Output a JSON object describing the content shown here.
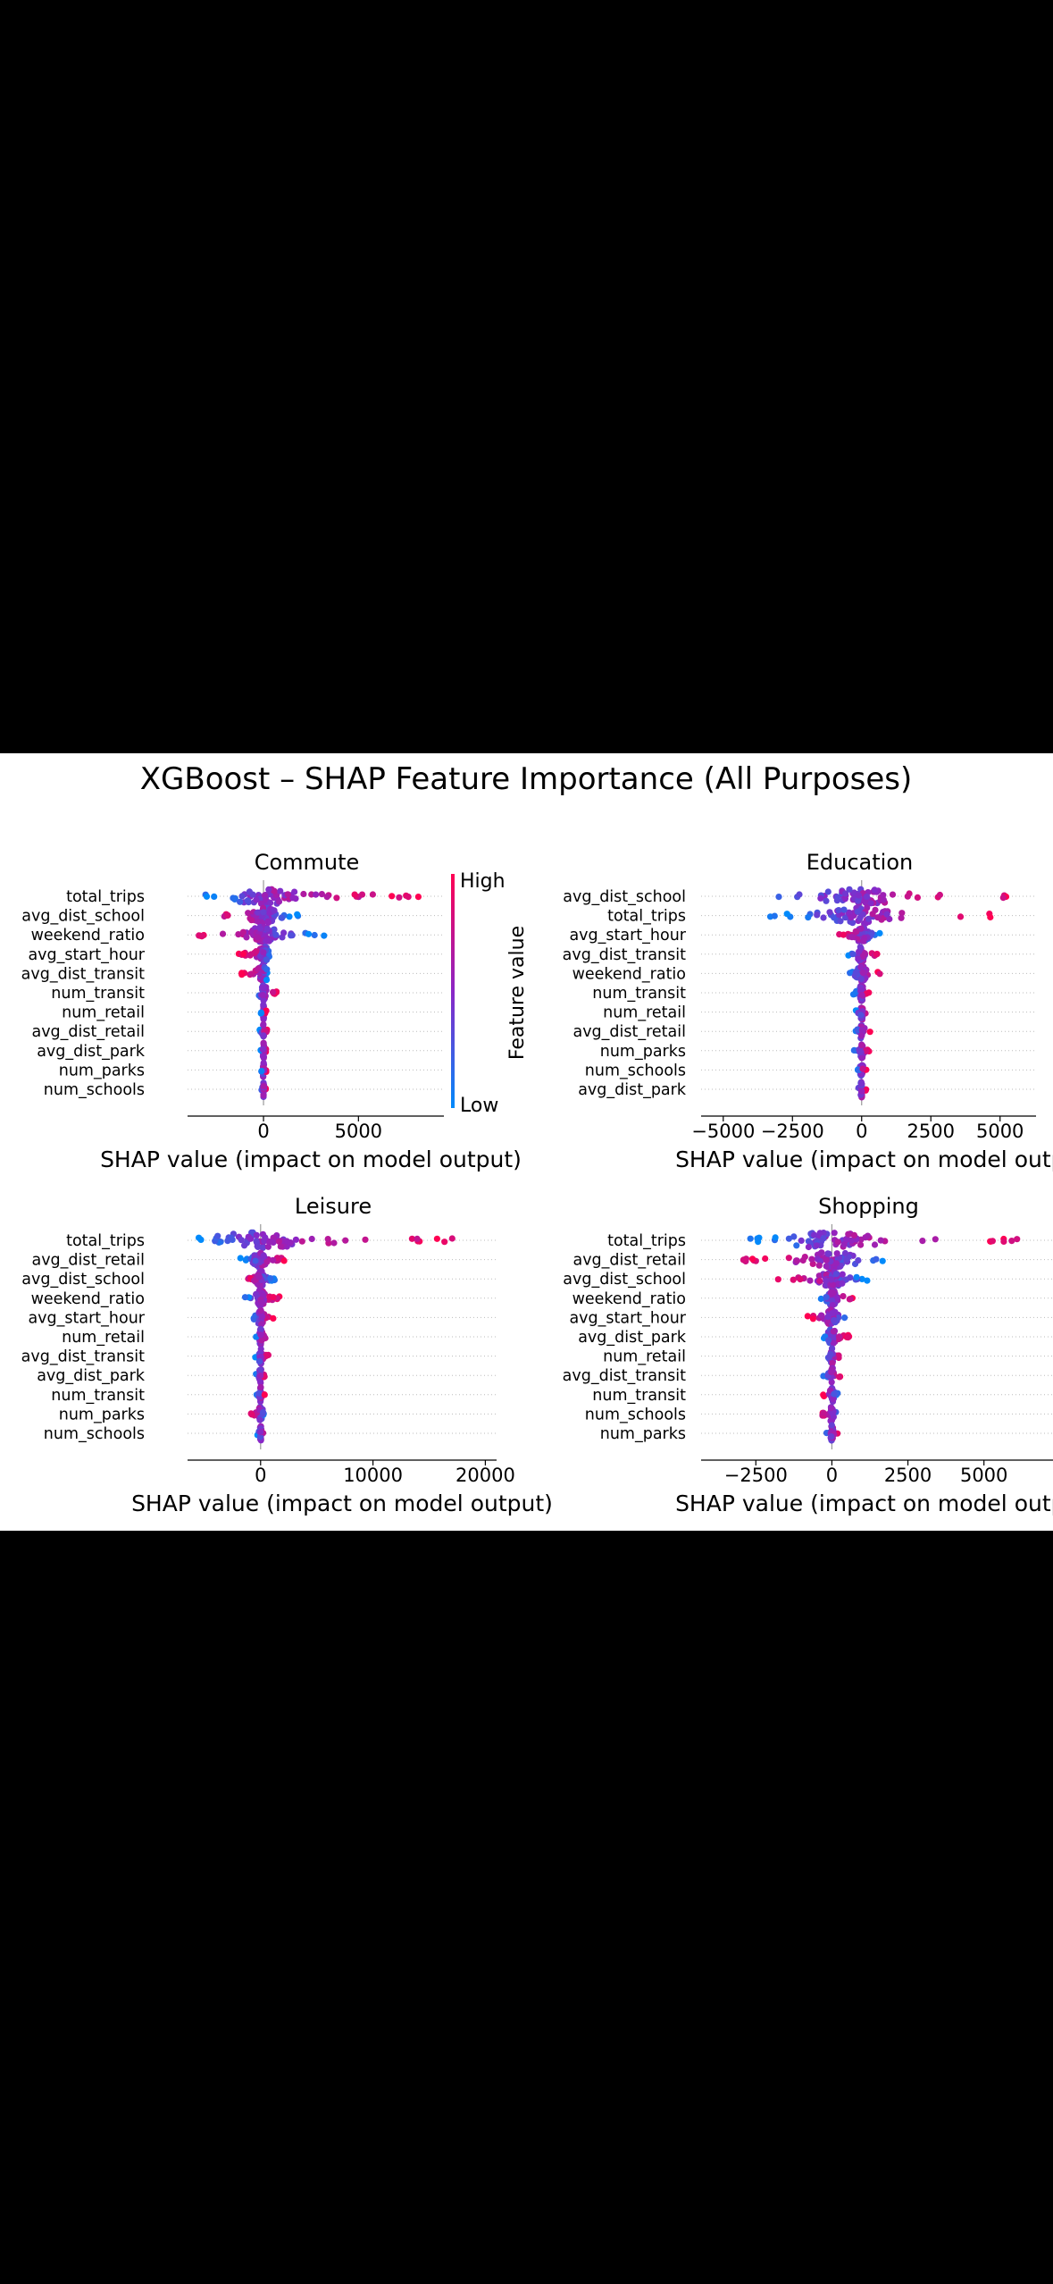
{
  "figure": {
    "title": "XGBoost – SHAP Feature Importance (All Purposes)"
  },
  "colorbar": {
    "high_label": "High",
    "low_label": "Low",
    "axis_label": "Feature value",
    "colors": {
      "low": "#008afb",
      "mid": "#8b26c6",
      "high": "#ff0052"
    }
  },
  "chart_data": [
    {
      "type": "scatter",
      "title": "Commute",
      "xlabel": "SHAP value (impact on model output)",
      "xlim": [
        -4000,
        9500
      ],
      "xticks": [
        0,
        5000
      ],
      "xtick_labels": [
        "0",
        "5000"
      ],
      "features": [
        "total_trips",
        "avg_dist_school",
        "weekend_ratio",
        "avg_start_hour",
        "avg_dist_transit",
        "num_transit",
        "num_retail",
        "avg_dist_retail",
        "avg_dist_park",
        "num_parks",
        "num_schools"
      ],
      "spread": [
        [
          -3300,
          8600
        ],
        [
          -2900,
          2000
        ],
        [
          -3500,
          3200
        ],
        [
          -1300,
          300
        ],
        [
          -1300,
          200
        ],
        [
          -300,
          700
        ],
        [
          -150,
          150
        ],
        [
          -200,
          200
        ],
        [
          -150,
          150
        ],
        [
          -150,
          150
        ],
        [
          -120,
          120
        ]
      ]
    },
    {
      "type": "scatter",
      "title": "Education",
      "xlabel": "SHAP value (impact on model output)",
      "xlim": [
        -5800,
        6300
      ],
      "xticks": [
        -5000,
        -2500,
        0,
        2500,
        5000
      ],
      "xtick_labels": [
        "−5000",
        "−2500",
        "0",
        "2500",
        "5000"
      ],
      "features": [
        "avg_dist_school",
        "total_trips",
        "avg_start_hour",
        "avg_dist_transit",
        "weekend_ratio",
        "num_transit",
        "num_retail",
        "avg_dist_retail",
        "num_parks",
        "num_schools",
        "avg_dist_park"
      ],
      "spread": [
        [
          -4700,
          6000
        ],
        [
          -3300,
          5000
        ],
        [
          -1000,
          800
        ],
        [
          -500,
          600
        ],
        [
          -500,
          700
        ],
        [
          -300,
          300
        ],
        [
          -250,
          250
        ],
        [
          -300,
          400
        ],
        [
          -300,
          300
        ],
        [
          -200,
          200
        ],
        [
          -200,
          200
        ]
      ]
    },
    {
      "type": "scatter",
      "title": "Leisure",
      "xlabel": "SHAP value (impact on model output)",
      "xlim": [
        -6500,
        21000
      ],
      "xticks": [
        0,
        10000,
        20000
      ],
      "xtick_labels": [
        "0",
        "10000",
        "20000"
      ],
      "features": [
        "total_trips",
        "avg_dist_retail",
        "avg_dist_school",
        "weekend_ratio",
        "avg_start_hour",
        "num_retail",
        "avg_dist_transit",
        "avg_dist_park",
        "num_transit",
        "num_parks",
        "num_schools"
      ],
      "spread": [
        [
          -5500,
          19000
        ],
        [
          -1800,
          2500
        ],
        [
          -1500,
          1300
        ],
        [
          -1500,
          1800
        ],
        [
          -1000,
          1200
        ],
        [
          -500,
          600
        ],
        [
          -500,
          700
        ],
        [
          -500,
          500
        ],
        [
          -400,
          400
        ],
        [
          -1000,
          400
        ],
        [
          -300,
          300
        ]
      ]
    },
    {
      "type": "scatter",
      "title": "Shopping",
      "xlabel": "SHAP value (impact on model output)",
      "xlim": [
        -4300,
        7300
      ],
      "xticks": [
        -2500,
        0,
        2500,
        5000
      ],
      "xtick_labels": [
        "−2500",
        "0",
        "2500",
        "5000"
      ],
      "features": [
        "total_trips",
        "avg_dist_retail",
        "avg_dist_school",
        "weekend_ratio",
        "avg_start_hour",
        "avg_dist_park",
        "num_retail",
        "avg_dist_transit",
        "num_transit",
        "num_schools",
        "num_parks"
      ],
      "spread": [
        [
          -2700,
          6800
        ],
        [
          -3300,
          1700
        ],
        [
          -1800,
          1200
        ],
        [
          -500,
          800
        ],
        [
          -800,
          600
        ],
        [
          -300,
          600
        ],
        [
          -300,
          300
        ],
        [
          -300,
          300
        ],
        [
          -300,
          200
        ],
        [
          -400,
          200
        ],
        [
          -200,
          200
        ]
      ]
    }
  ]
}
